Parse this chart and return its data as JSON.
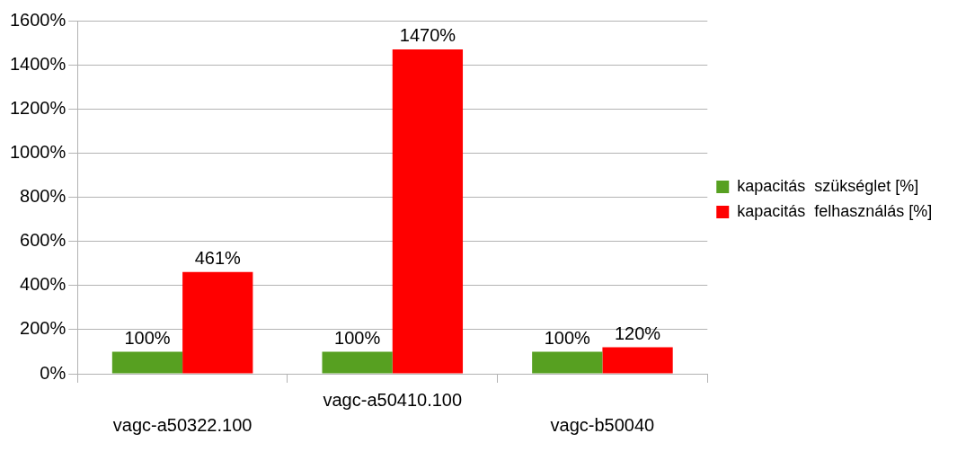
{
  "chart_data": {
    "type": "bar",
    "categories": [
      "vagc-a50322.100",
      "vagc-a50410.100",
      "vagc-b50040"
    ],
    "series": [
      {
        "name": "kapacitás  szükséglet [%]",
        "color": "#57a021",
        "values": [
          100,
          100,
          100
        ],
        "value_labels": [
          "100%",
          "100%",
          "100%"
        ]
      },
      {
        "name": "kapacitás  felhasználás [%]",
        "color": "#ff0000",
        "values": [
          461,
          1470,
          120
        ],
        "value_labels": [
          "461%",
          "1470%",
          "120%"
        ]
      }
    ],
    "ylim": [
      0,
      1600
    ],
    "yticks": [
      {
        "value": 0,
        "label": "0%"
      },
      {
        "value": 200,
        "label": "200%"
      },
      {
        "value": 400,
        "label": "400%"
      },
      {
        "value": 600,
        "label": "600%"
      },
      {
        "value": 800,
        "label": "800%"
      },
      {
        "value": 1000,
        "label": "1000%"
      },
      {
        "value": 1200,
        "label": "1200%"
      },
      {
        "value": 1400,
        "label": "1400%"
      },
      {
        "value": 1600,
        "label": "1600%"
      }
    ],
    "grid": "y",
    "legend": "right"
  }
}
